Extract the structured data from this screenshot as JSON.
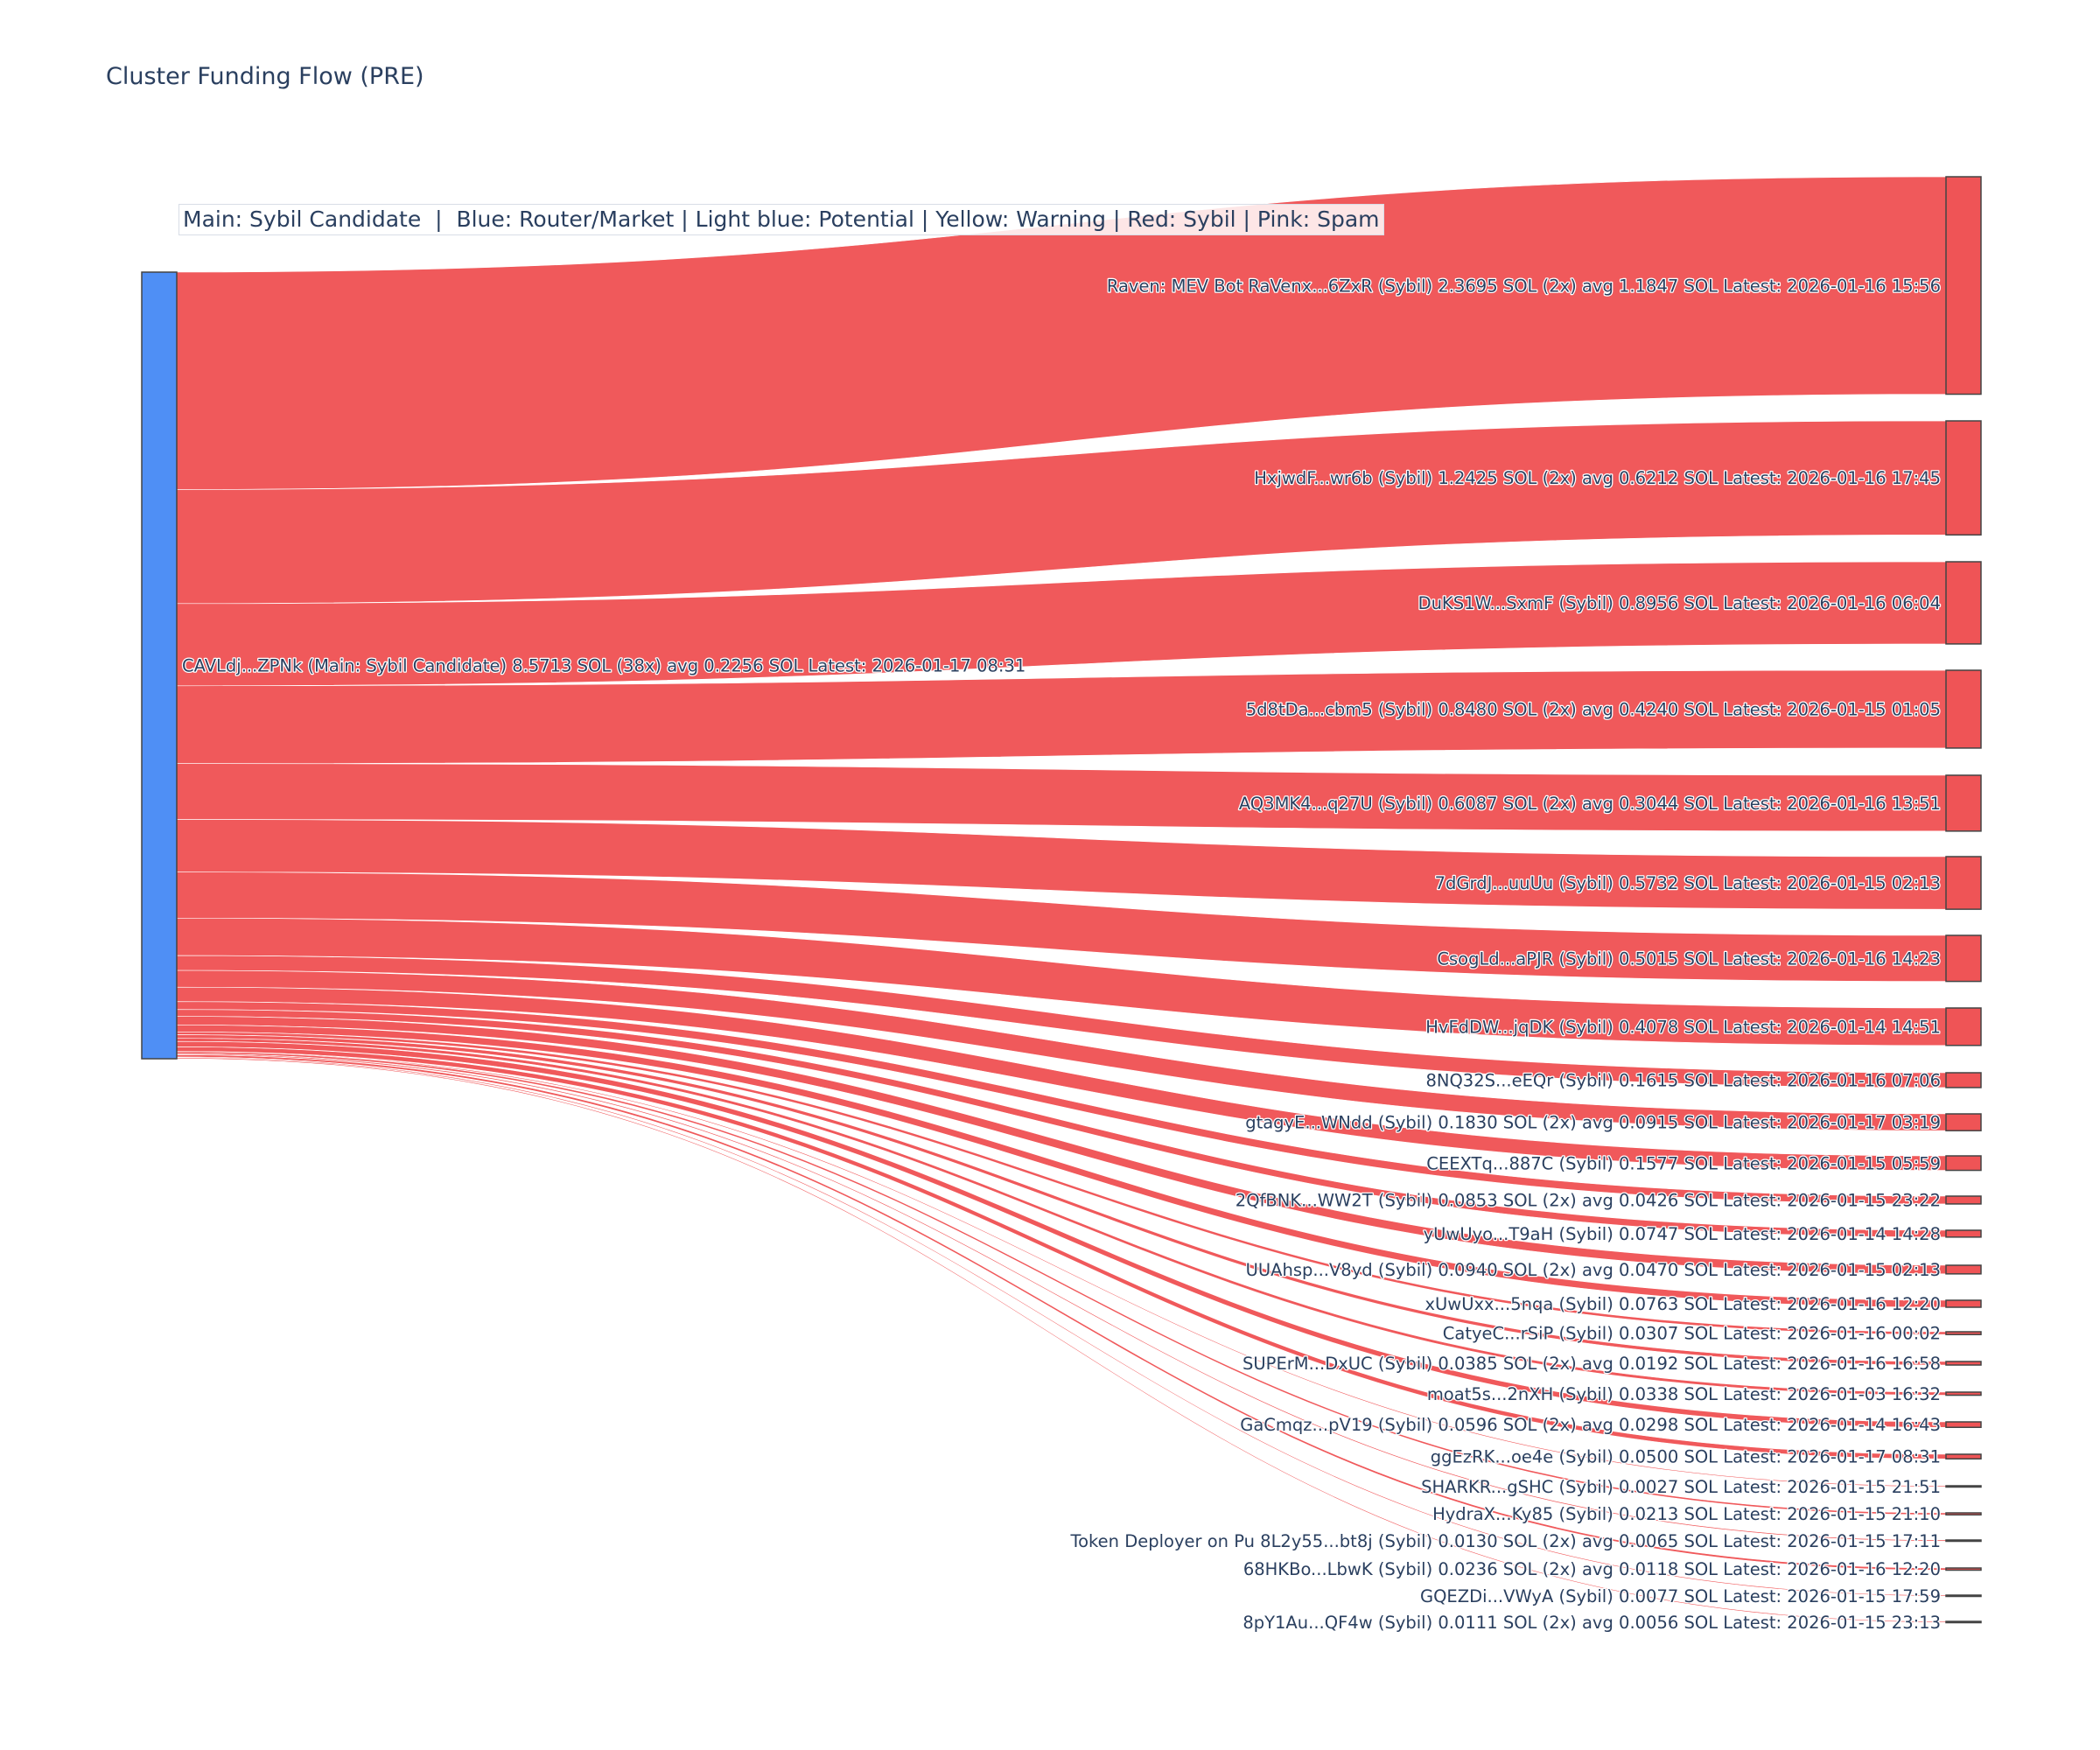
{
  "title": "Cluster Funding Flow (PRE)",
  "legend_text": "Main: Sybil Candidate  |  Blue: Router/Market | Light blue: Potential | Yellow: Warning | Red: Sybil | Pink: Spam",
  "colors": {
    "source_node": "#4f8ff5",
    "target_node": "#ef5456",
    "link": "#ef5456",
    "node_border": "#444444"
  },
  "chart_data": {
    "type": "sankey",
    "source": {
      "label": "CAVLdj...ZPNk (Main: Sybil Candidate) 8.5713 SOL (38x) avg 0.2256 SOL Latest: 2026-01-17 08:31",
      "value": 8.5713
    },
    "targets": [
      {
        "label": "Raven: MEV Bot RaVenx...6ZxR (Sybil) 2.3695 SOL (2x) avg 1.1847 SOL Latest: 2026-01-16 15:56",
        "value": 2.3695
      },
      {
        "label": "HxjwdF...wr6b (Sybil) 1.2425 SOL (2x) avg 0.6212 SOL Latest: 2026-01-16 17:45",
        "value": 1.2425
      },
      {
        "label": "DuKS1W...SxmF (Sybil) 0.8956 SOL Latest: 2026-01-16 06:04",
        "value": 0.8956
      },
      {
        "label": "5d8tDa...cbm5 (Sybil) 0.8480 SOL (2x) avg 0.4240 SOL Latest: 2026-01-15 01:05",
        "value": 0.848
      },
      {
        "label": "AQ3MK4...q27U (Sybil) 0.6087 SOL (2x) avg 0.3044 SOL Latest: 2026-01-16 13:51",
        "value": 0.6087
      },
      {
        "label": "7dGrdJ...uuUu (Sybil) 0.5732 SOL Latest: 2026-01-15 02:13",
        "value": 0.5732
      },
      {
        "label": "CsogLd...aPJR (Sybil) 0.5015 SOL Latest: 2026-01-16 14:23",
        "value": 0.5015
      },
      {
        "label": "HvFdDW...jqDK (Sybil) 0.4078 SOL Latest: 2026-01-14 14:51",
        "value": 0.4078
      },
      {
        "label": "8NQ32S...eEQr (Sybil) 0.1615 SOL Latest: 2026-01-16 07:06",
        "value": 0.1615
      },
      {
        "label": "gtagyE...WNdd (Sybil) 0.1830 SOL (2x) avg 0.0915 SOL Latest: 2026-01-17 03:19",
        "value": 0.183
      },
      {
        "label": "CEEXTq...887C (Sybil) 0.1577 SOL Latest: 2026-01-15 05:59",
        "value": 0.1577
      },
      {
        "label": "2QfBNK...WW2T (Sybil) 0.0853 SOL (2x) avg 0.0426 SOL Latest: 2026-01-15 23:22",
        "value": 0.0853
      },
      {
        "label": "yUwUyo...T9aH (Sybil) 0.0747 SOL Latest: 2026-01-14 14:28",
        "value": 0.0747
      },
      {
        "label": "UUAhsp...V8yd (Sybil) 0.0940 SOL (2x) avg 0.0470 SOL Latest: 2026-01-15 02:13",
        "value": 0.094
      },
      {
        "label": "xUwUxx...5nqa (Sybil) 0.0763 SOL Latest: 2026-01-16 12:20",
        "value": 0.0763
      },
      {
        "label": "CatyeC...rSiP (Sybil) 0.0307 SOL Latest: 2026-01-16 00:02",
        "value": 0.0307
      },
      {
        "label": "SUPErM...DxUC (Sybil) 0.0385 SOL (2x) avg 0.0192 SOL Latest: 2026-01-16 16:58",
        "value": 0.0385
      },
      {
        "label": "moat5s...2nXH (Sybil) 0.0338 SOL Latest: 2026-01-03 16:32",
        "value": 0.0338
      },
      {
        "label": "GaCmqz...pV19 (Sybil) 0.0596 SOL (2x) avg 0.0298 SOL Latest: 2026-01-14 16:43",
        "value": 0.0596
      },
      {
        "label": "ggEzRK...oe4e (Sybil) 0.0500 SOL Latest: 2026-01-17 08:31",
        "value": 0.05
      },
      {
        "label": "SHARKR...gSHC (Sybil) 0.0027 SOL Latest: 2026-01-15 21:51",
        "value": 0.0027
      },
      {
        "label": "HydraX...Ky85 (Sybil) 0.0213 SOL Latest: 2026-01-15 21:10",
        "value": 0.0213
      },
      {
        "label": "Token Deployer on Pu 8L2y55...bt8j (Sybil) 0.0130 SOL (2x) avg 0.0065 SOL Latest: 2026-01-15 17:11",
        "value": 0.013
      },
      {
        "label": "68HKBo...LbwK (Sybil) 0.0236 SOL (2x) avg 0.0118 SOL Latest: 2026-01-16 12:20",
        "value": 0.0236
      },
      {
        "label": "GQEZDi...VWyA (Sybil) 0.0077 SOL Latest: 2026-01-15 17:59",
        "value": 0.0077
      },
      {
        "label": "8pY1Au...QF4w (Sybil) 0.0111 SOL (2x) avg 0.0056 SOL Latest: 2026-01-15 23:13",
        "value": 0.0111
      }
    ]
  }
}
